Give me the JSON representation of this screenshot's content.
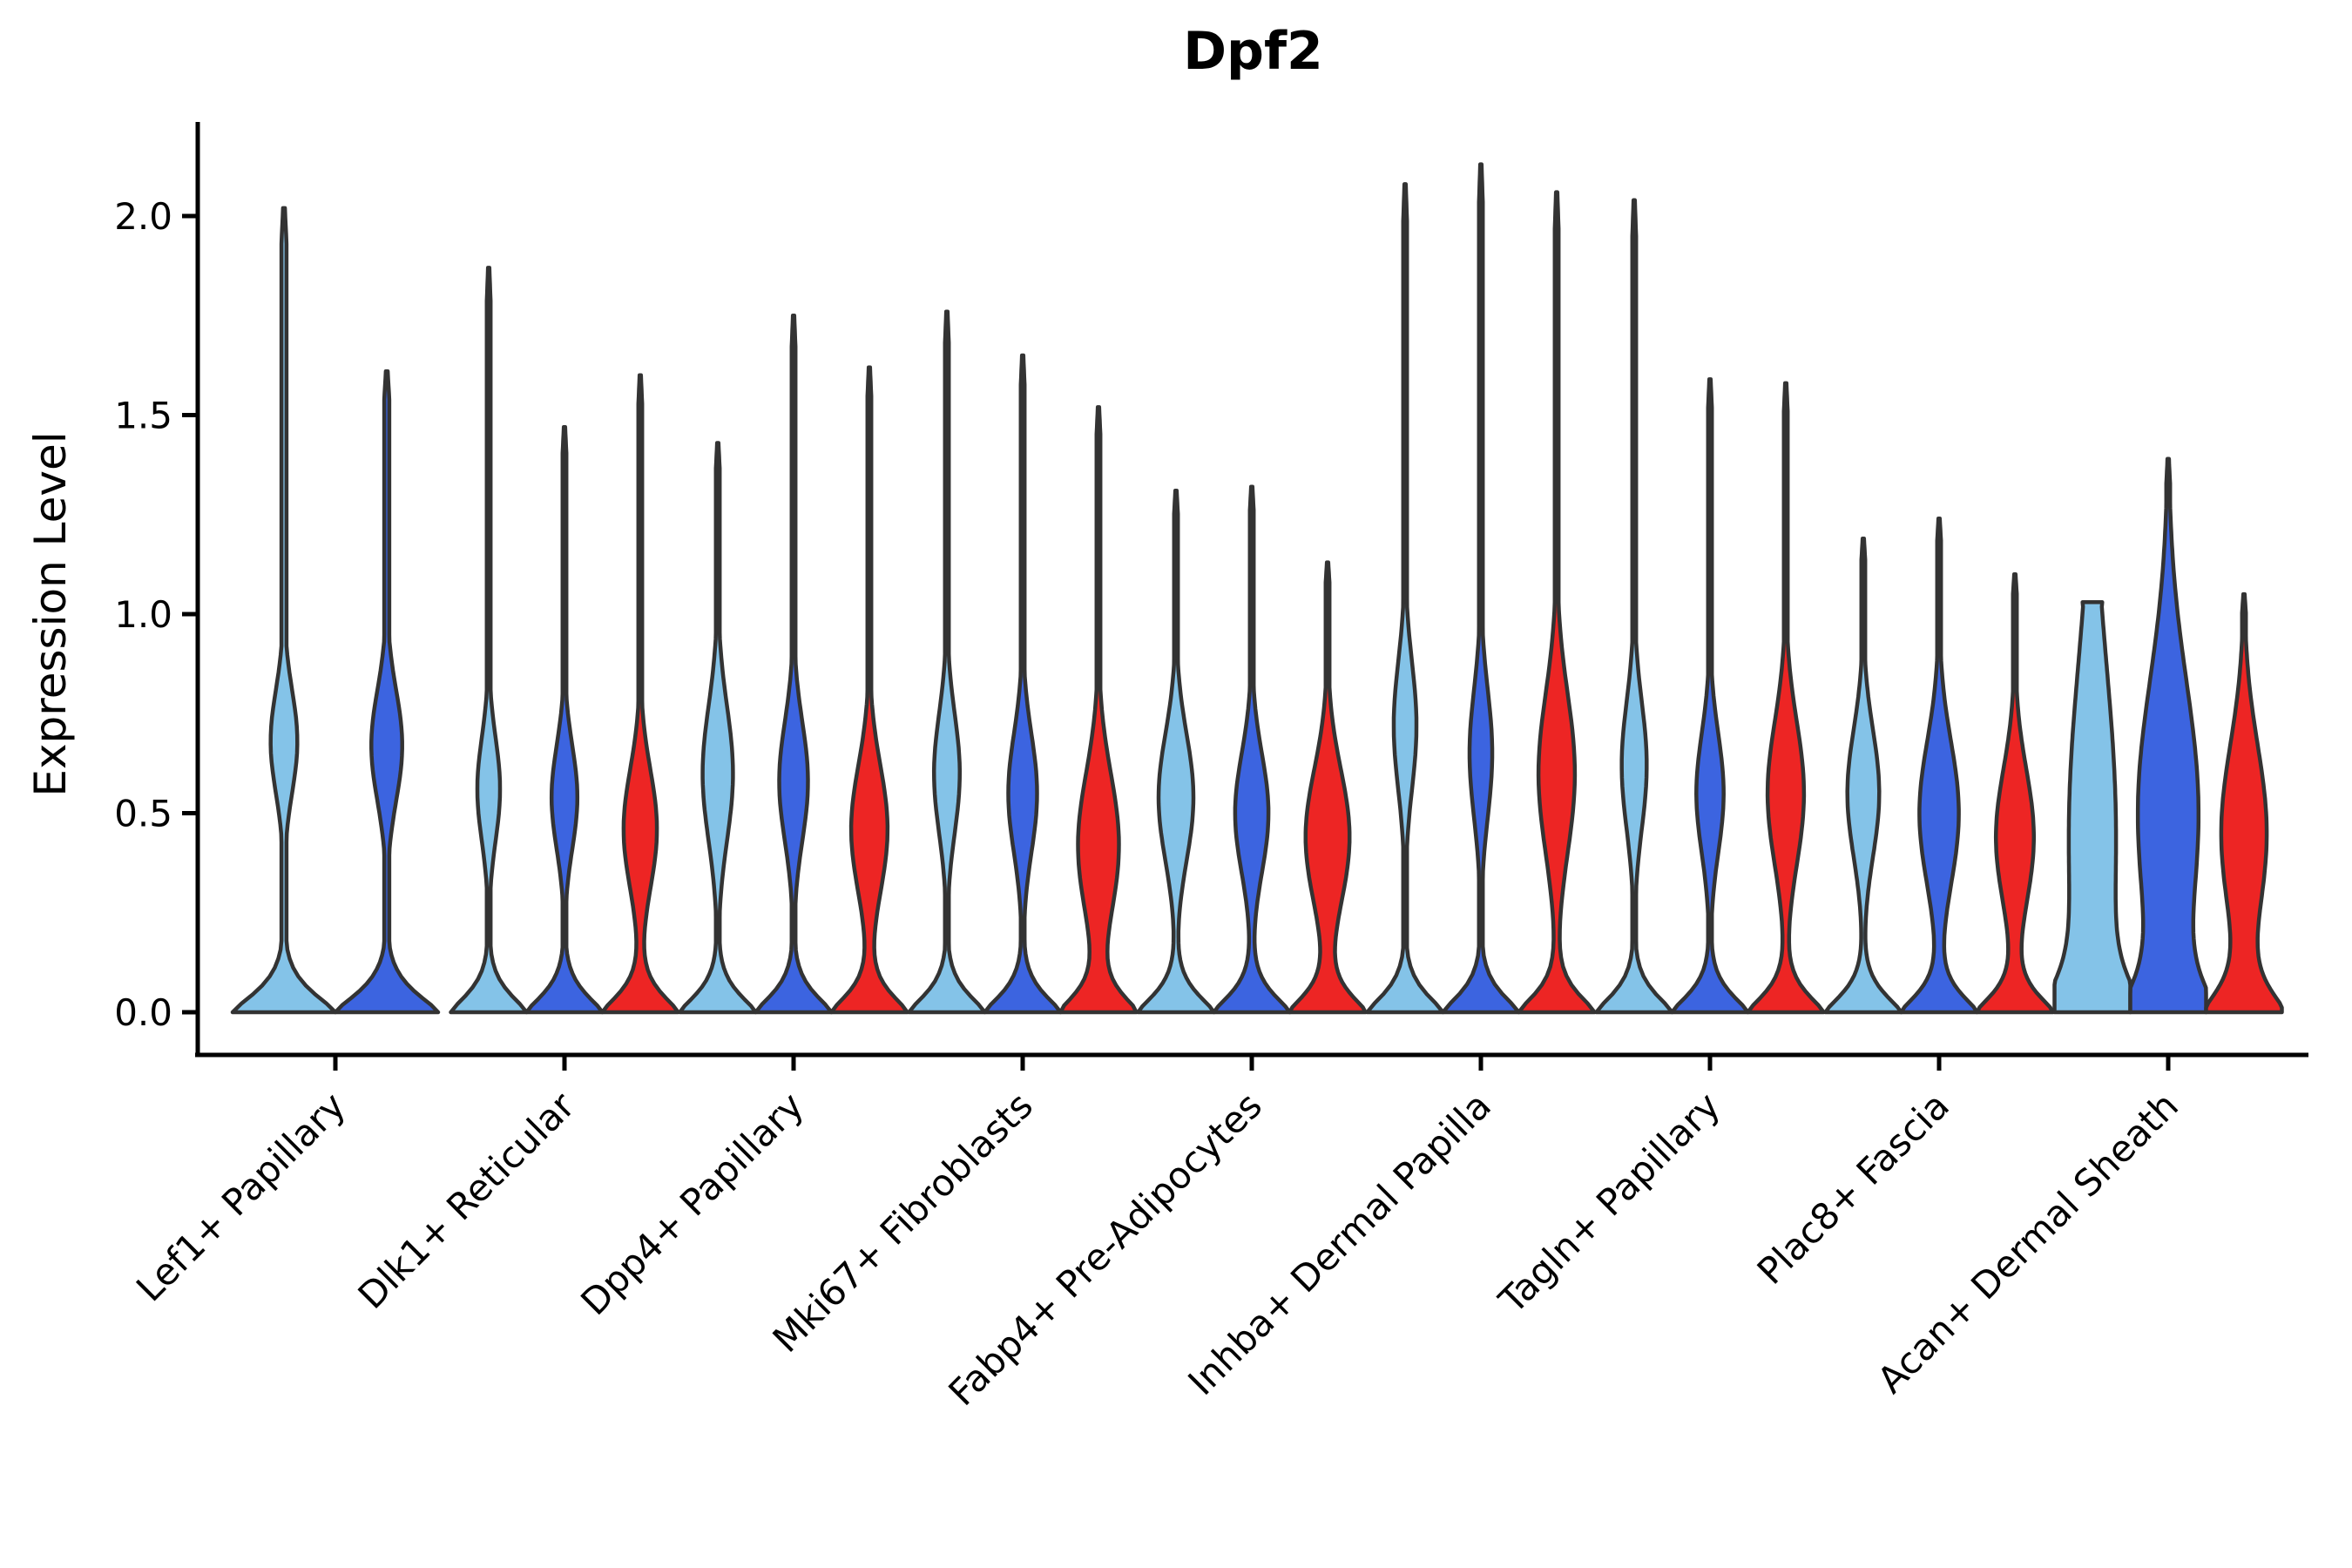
{
  "figure": {
    "background": "#ffffff",
    "axis_color": "#000000",
    "violin_outline_color": "#333333"
  },
  "chart_data": {
    "type": "violin",
    "title": "Dpf2",
    "ylabel": "Expression Level",
    "xlabel": "",
    "ylim": [
      0,
      2.26
    ],
    "y_ticks": [
      0.0,
      0.5,
      1.0,
      1.5,
      2.0
    ],
    "y_tick_labels": [
      "0.0",
      "0.5",
      "1.0",
      "1.5",
      "2.0"
    ],
    "grid": false,
    "legend": null,
    "conditions": [
      {
        "key": "light-blue",
        "color": "#84C3E8"
      },
      {
        "key": "dark-blue",
        "color": "#3C64E0"
      },
      {
        "key": "red",
        "color": "#ED2524"
      }
    ],
    "categories": [
      "Lef1+ Papillary",
      "Dlk1+ Reticular",
      "Dpp4+ Papillary",
      "Mki67+ Fibroblasts",
      "Fabp4+ Pre-Adipocytes",
      "Inhba+ Dermal Papilla",
      "Tagln+ Papillary",
      "Plac8+ Fascia",
      "Acan+ Dermal Sheath"
    ],
    "note": "All violins have their largest density mass at expression 0; values below are the violin maxima (tail tops) and the secondary density bulge read from the figure.",
    "groups": [
      {
        "category": "Lef1+ Papillary",
        "violins": [
          {
            "condition": 0,
            "max_expr": 2.02,
            "bulge_center": 0.68,
            "bulge_sigma": 0.13,
            "bulge_halfwidth": 0.26,
            "base_sigma": 0.075
          },
          {
            "condition": 1,
            "max_expr": 1.61,
            "bulge_center": 0.67,
            "bulge_sigma": 0.14,
            "bulge_halfwidth": 0.3,
            "base_sigma": 0.075
          }
        ]
      },
      {
        "category": "Dlk1+ Reticular",
        "violins": [
          {
            "condition": 0,
            "max_expr": 1.87,
            "bulge_center": 0.56,
            "bulge_sigma": 0.13,
            "bulge_halfwidth": 0.3,
            "base_sigma": 0.07
          },
          {
            "condition": 1,
            "max_expr": 1.47,
            "bulge_center": 0.54,
            "bulge_sigma": 0.13,
            "bulge_halfwidth": 0.34,
            "base_sigma": 0.07
          },
          {
            "condition": 2,
            "max_expr": 1.6,
            "bulge_center": 0.46,
            "bulge_sigma": 0.15,
            "bulge_halfwidth": 0.44,
            "base_sigma": 0.07
          }
        ]
      },
      {
        "category": "Dpp4+ Papillary",
        "violins": [
          {
            "condition": 0,
            "max_expr": 1.43,
            "bulge_center": 0.6,
            "bulge_sigma": 0.17,
            "bulge_halfwidth": 0.4,
            "base_sigma": 0.07
          },
          {
            "condition": 1,
            "max_expr": 1.75,
            "bulge_center": 0.58,
            "bulge_sigma": 0.15,
            "bulge_halfwidth": 0.38,
            "base_sigma": 0.07
          },
          {
            "condition": 2,
            "max_expr": 1.62,
            "bulge_center": 0.46,
            "bulge_sigma": 0.16,
            "bulge_halfwidth": 0.48,
            "base_sigma": 0.07
          }
        ]
      },
      {
        "category": "Mki67+ Fibroblasts",
        "violins": [
          {
            "condition": 0,
            "max_expr": 1.76,
            "bulge_center": 0.6,
            "bulge_sigma": 0.15,
            "bulge_halfwidth": 0.34,
            "base_sigma": 0.07
          },
          {
            "condition": 1,
            "max_expr": 1.65,
            "bulge_center": 0.55,
            "bulge_sigma": 0.15,
            "bulge_halfwidth": 0.38,
            "base_sigma": 0.07
          },
          {
            "condition": 2,
            "max_expr": 1.52,
            "bulge_center": 0.42,
            "bulge_sigma": 0.18,
            "bulge_halfwidth": 0.54,
            "base_sigma": 0.07
          }
        ]
      },
      {
        "category": "Fabp4+ Pre-Adipocytes",
        "violins": [
          {
            "condition": 0,
            "max_expr": 1.31,
            "bulge_center": 0.54,
            "bulge_sigma": 0.16,
            "bulge_halfwidth": 0.46,
            "base_sigma": 0.07
          },
          {
            "condition": 1,
            "max_expr": 1.32,
            "bulge_center": 0.5,
            "bulge_sigma": 0.15,
            "bulge_halfwidth": 0.44,
            "base_sigma": 0.07
          },
          {
            "condition": 2,
            "max_expr": 1.13,
            "bulge_center": 0.44,
            "bulge_sigma": 0.17,
            "bulge_halfwidth": 0.58,
            "base_sigma": 0.07
          }
        ]
      },
      {
        "category": "Inhba+ Dermal Papilla",
        "violins": [
          {
            "condition": 0,
            "max_expr": 2.08,
            "bulge_center": 0.72,
            "bulge_sigma": 0.16,
            "bulge_halfwidth": 0.3,
            "base_sigma": 0.07
          },
          {
            "condition": 1,
            "max_expr": 2.13,
            "bulge_center": 0.65,
            "bulge_sigma": 0.16,
            "bulge_halfwidth": 0.3,
            "base_sigma": 0.07
          },
          {
            "condition": 2,
            "max_expr": 2.06,
            "bulge_center": 0.6,
            "bulge_sigma": 0.2,
            "bulge_halfwidth": 0.48,
            "base_sigma": 0.07
          }
        ]
      },
      {
        "category": "Tagln+ Papillary",
        "violins": [
          {
            "condition": 0,
            "max_expr": 2.04,
            "bulge_center": 0.62,
            "bulge_sigma": 0.16,
            "bulge_halfwidth": 0.33,
            "base_sigma": 0.07
          },
          {
            "condition": 1,
            "max_expr": 1.59,
            "bulge_center": 0.55,
            "bulge_sigma": 0.15,
            "bulge_halfwidth": 0.36,
            "base_sigma": 0.07
          },
          {
            "condition": 2,
            "max_expr": 1.58,
            "bulge_center": 0.55,
            "bulge_sigma": 0.18,
            "bulge_halfwidth": 0.48,
            "base_sigma": 0.07
          }
        ]
      },
      {
        "category": "Plac8+ Fascia",
        "violins": [
          {
            "condition": 0,
            "max_expr": 1.19,
            "bulge_center": 0.55,
            "bulge_sigma": 0.16,
            "bulge_halfwidth": 0.42,
            "base_sigma": 0.07
          },
          {
            "condition": 1,
            "max_expr": 1.24,
            "bulge_center": 0.5,
            "bulge_sigma": 0.18,
            "bulge_halfwidth": 0.52,
            "base_sigma": 0.07
          },
          {
            "condition": 2,
            "max_expr": 1.1,
            "bulge_center": 0.44,
            "bulge_sigma": 0.17,
            "bulge_halfwidth": 0.5,
            "base_sigma": 0.07
          }
        ]
      },
      {
        "category": "Acan+ Dermal Sheath",
        "violins": [
          {
            "condition": 0,
            "max_expr": 1.03,
            "bulge_center": 0.45,
            "bulge_sigma": 0.42,
            "bulge_halfwidth": 0.62,
            "base_sigma": 0.12,
            "flat_top": 0.26
          },
          {
            "condition": 1,
            "max_expr": 1.39,
            "bulge_center": 0.5,
            "bulge_sigma": 0.33,
            "bulge_halfwidth": 0.8,
            "base_sigma": 0.12
          },
          {
            "condition": 2,
            "max_expr": 1.05,
            "bulge_center": 0.45,
            "bulge_sigma": 0.22,
            "bulge_halfwidth": 0.6,
            "base_sigma": 0.09
          }
        ]
      }
    ]
  }
}
